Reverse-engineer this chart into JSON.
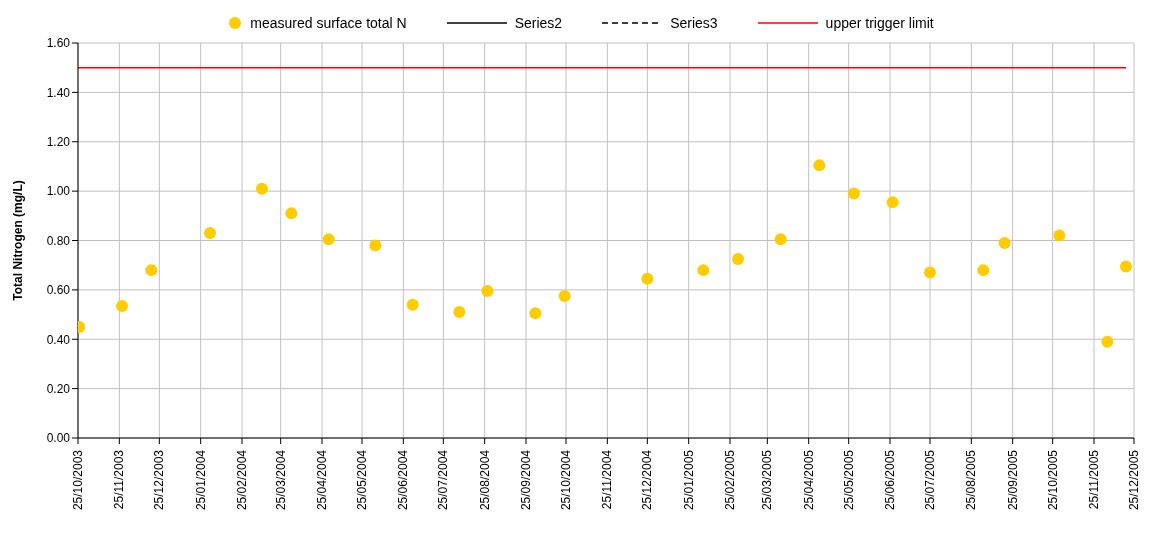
{
  "chart_data": {
    "type": "scatter",
    "ylabel": "Total Nitrogen (mg/L)",
    "legend": "top",
    "grid": true,
    "xlim": [
      "2003-10-25",
      "2005-12-25"
    ],
    "xticks": [
      {
        "value": "2003-10-25",
        "label": "25/10/2003"
      },
      {
        "value": "2003-11-25",
        "label": "25/11/2003"
      },
      {
        "value": "2003-12-25",
        "label": "25/12/2003"
      },
      {
        "value": "2004-01-25",
        "label": "25/01/2004"
      },
      {
        "value": "2004-02-25",
        "label": "25/02/2004"
      },
      {
        "value": "2004-03-25",
        "label": "25/03/2004"
      },
      {
        "value": "2004-04-25",
        "label": "25/04/2004"
      },
      {
        "value": "2004-05-25",
        "label": "25/05/2004"
      },
      {
        "value": "2004-06-25",
        "label": "25/06/2004"
      },
      {
        "value": "2004-07-25",
        "label": "25/07/2004"
      },
      {
        "value": "2004-08-25",
        "label": "25/08/2004"
      },
      {
        "value": "2004-09-25",
        "label": "25/09/2004"
      },
      {
        "value": "2004-10-25",
        "label": "25/10/2004"
      },
      {
        "value": "2004-11-25",
        "label": "25/11/2004"
      },
      {
        "value": "2004-12-25",
        "label": "25/12/2004"
      },
      {
        "value": "2005-01-25",
        "label": "25/01/2005"
      },
      {
        "value": "2005-02-25",
        "label": "25/02/2005"
      },
      {
        "value": "2005-03-25",
        "label": "25/03/2005"
      },
      {
        "value": "2005-04-25",
        "label": "25/04/2005"
      },
      {
        "value": "2005-05-25",
        "label": "25/05/2005"
      },
      {
        "value": "2005-06-25",
        "label": "25/06/2005"
      },
      {
        "value": "2005-07-25",
        "label": "25/07/2005"
      },
      {
        "value": "2005-08-25",
        "label": "25/08/2005"
      },
      {
        "value": "2005-09-25",
        "label": "25/09/2005"
      },
      {
        "value": "2005-10-25",
        "label": "25/10/2005"
      },
      {
        "value": "2005-11-25",
        "label": "25/11/2005"
      },
      {
        "value": "2005-12-25",
        "label": "25/12/2005"
      }
    ],
    "ylim": [
      0,
      1.6
    ],
    "yticks": [
      {
        "value": 0,
        "label": "0.00"
      },
      {
        "value": 0.2,
        "label": "0.20"
      },
      {
        "value": 0.4,
        "label": "0.40"
      },
      {
        "value": 0.6,
        "label": "0.60"
      },
      {
        "value": 0.8,
        "label": "0.80"
      },
      {
        "value": 1.0,
        "label": "1.00"
      },
      {
        "value": 1.2,
        "label": "1.20"
      },
      {
        "value": 1.4,
        "label": "1.40"
      },
      {
        "value": 1.6,
        "label": "1.60"
      }
    ],
    "series": [
      {
        "name": "measured surface total N",
        "marker": "circle",
        "color": "#ffcc00",
        "x": [
          "2003-10-26",
          "2003-11-27",
          "2003-12-19",
          "2004-02-01",
          "2004-03-11",
          "2004-04-02",
          "2004-04-30",
          "2004-06-04",
          "2004-07-02",
          "2004-08-06",
          "2004-08-27",
          "2004-10-02",
          "2004-10-24",
          "2004-12-25",
          "2005-02-05",
          "2005-03-03",
          "2005-04-04",
          "2005-05-03",
          "2005-05-29",
          "2005-06-27",
          "2005-07-25",
          "2005-09-03",
          "2005-09-19",
          "2005-10-30",
          "2005-12-05",
          "2005-12-19"
        ],
        "values": [
          0.45,
          0.535,
          0.68,
          0.83,
          1.01,
          0.91,
          0.805,
          0.78,
          0.54,
          0.51,
          0.595,
          0.505,
          0.575,
          0.645,
          0.68,
          0.725,
          0.805,
          1.105,
          0.99,
          0.955,
          0.67,
          0.68,
          0.79,
          0.82,
          0.39,
          0.695
        ]
      },
      {
        "name": "Series2",
        "type": "line",
        "color": "#000000",
        "line_style": "solid"
      },
      {
        "name": "Series3",
        "type": "line",
        "color": "#000000",
        "line_style": "dashed"
      },
      {
        "name": "upper trigger limit",
        "type": "line",
        "color": "#ff0000",
        "line_style": "solid",
        "marker": "none",
        "x": [
          "2003-10-25",
          "2005-12-19"
        ],
        "values": [
          1.5,
          1.5
        ]
      }
    ]
  }
}
